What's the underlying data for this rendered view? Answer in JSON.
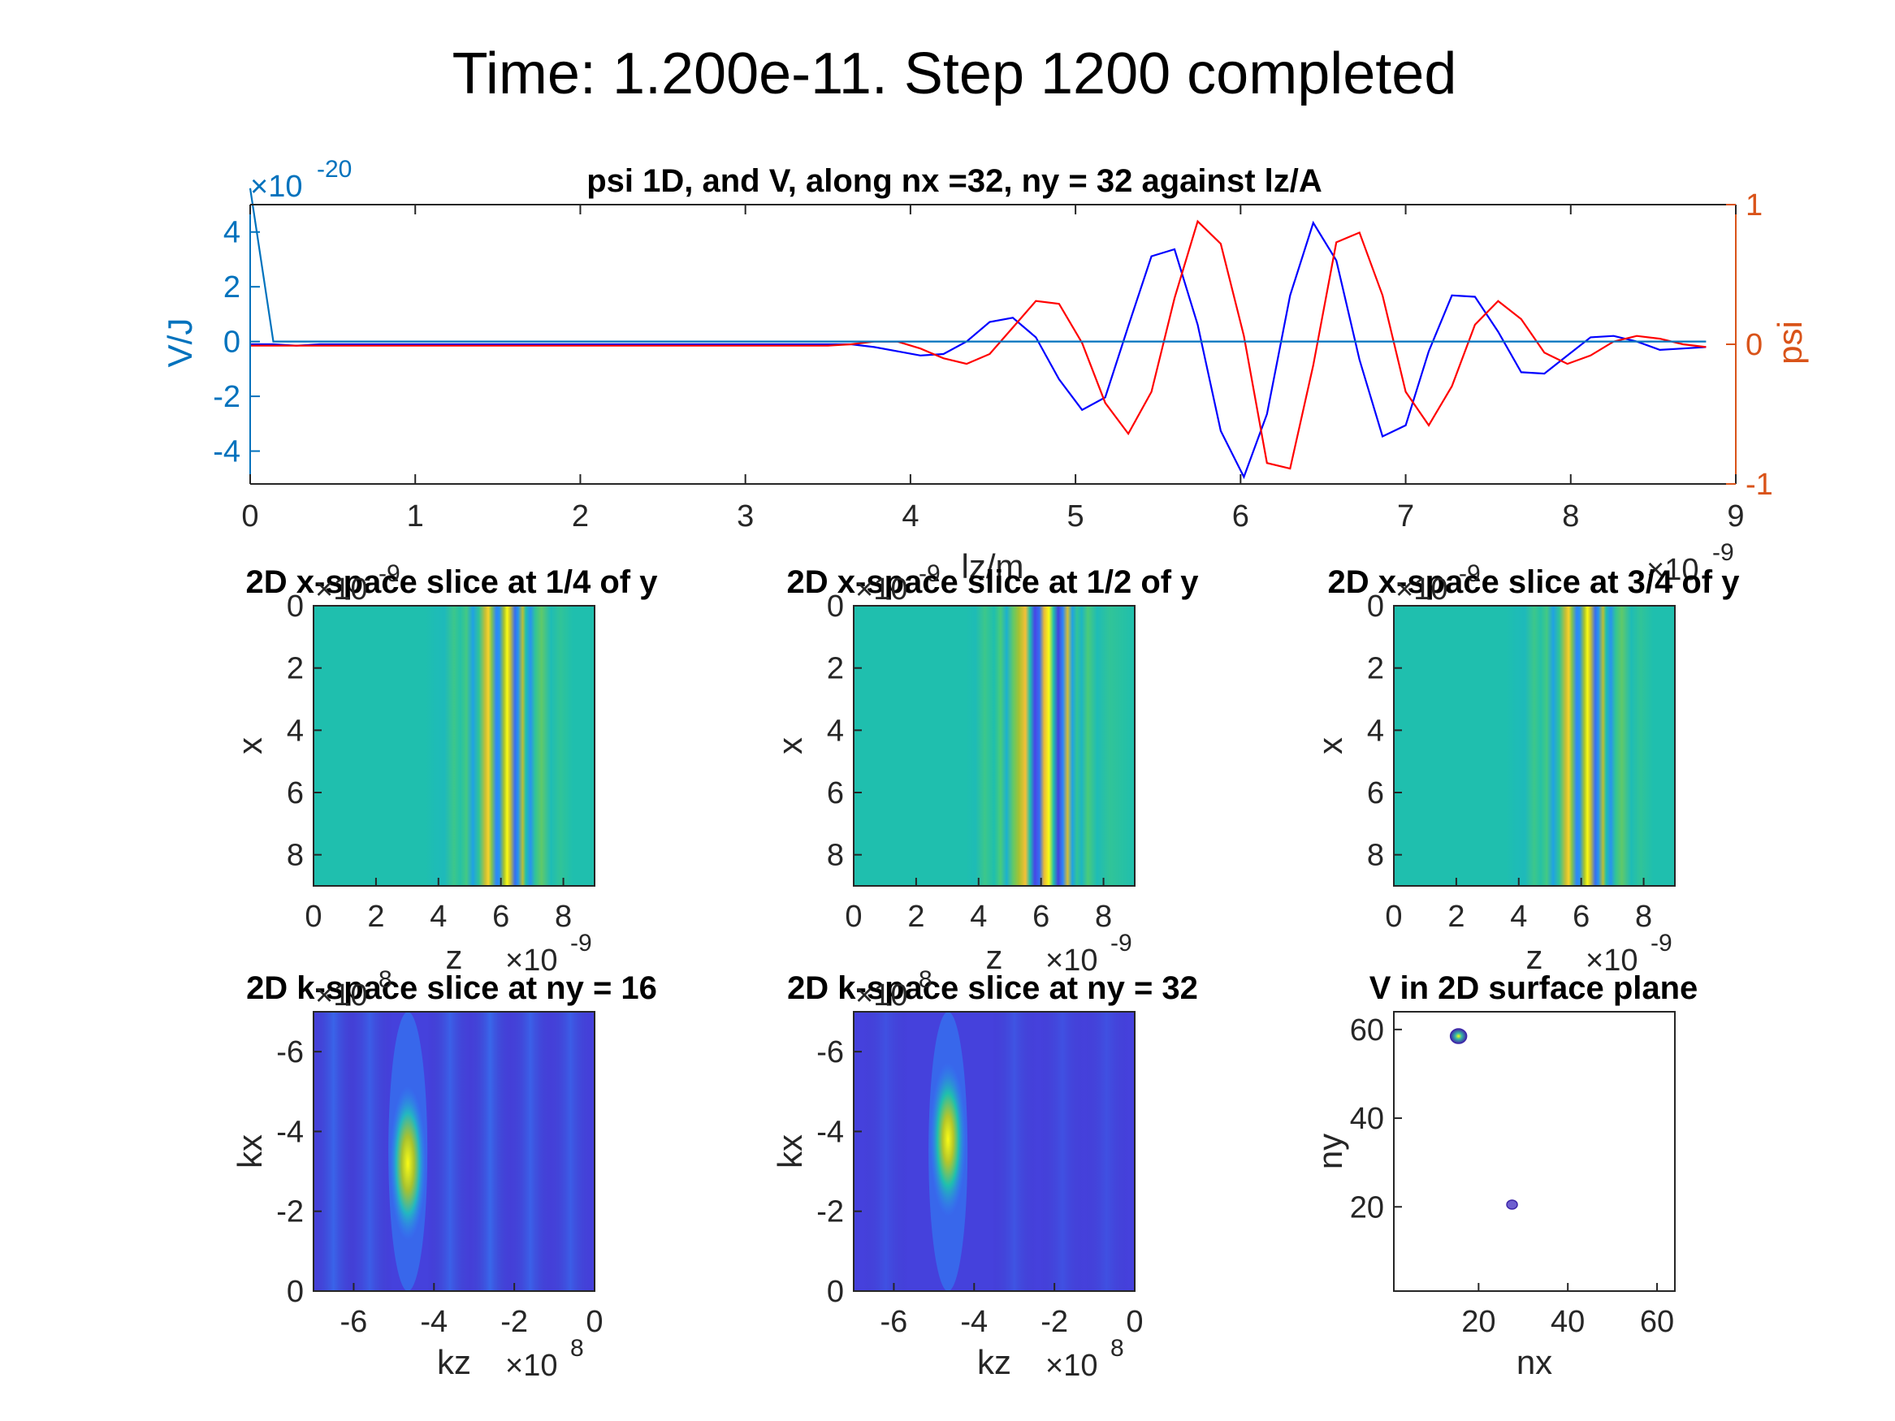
{
  "figure": {
    "suptitle": "Time: 1.200e-11. Step 1200 completed"
  },
  "colors": {
    "v_axis": "#0072BD",
    "psi_axis": "#D95319",
    "psi_real": "#0000FF",
    "psi_imag": "#FF0000",
    "v_line": "#0072BD",
    "parula_low": "#3E26A8",
    "parula_mid": "#1FBFAE",
    "parula_high": "#F9FB15"
  },
  "chart_data": [
    {
      "id": "psi1d",
      "type": "line",
      "title": "psi 1D, and V, along nx =32, ny = 32 against lz/A",
      "xlabel": "lz/m",
      "ylabel_left": "V/J",
      "ylabel_right": "psi",
      "x_exponent": "×10",
      "x_exponent_power": "-9",
      "y_left_exponent": "×10",
      "y_left_exponent_power": "-20",
      "xlim": [
        0,
        9
      ],
      "ylim_left": [
        -5.2,
        5
      ],
      "ylim_right": [
        -1,
        1
      ],
      "xticks": [
        "0",
        "1",
        "2",
        "3",
        "4",
        "5",
        "6",
        "7",
        "8",
        "9"
      ],
      "yticks_left": [
        "4",
        "2",
        "0",
        "-2",
        "-4"
      ],
      "yticks_left_values": [
        4,
        2,
        0,
        -2,
        -4
      ],
      "yticks_right": [
        "1",
        "0",
        "-1"
      ],
      "yticks_right_values": [
        1,
        0,
        -1
      ],
      "x": [
        0,
        0.14,
        0.28,
        0.42,
        0.56,
        0.7,
        0.84,
        0.98,
        1.12,
        1.26,
        1.4,
        1.54,
        1.68,
        1.82,
        1.96,
        2.1,
        2.24,
        2.38,
        2.52,
        2.66,
        2.8,
        2.94,
        3.08,
        3.22,
        3.36,
        3.5,
        3.64,
        3.78,
        3.92,
        4.06,
        4.2,
        4.34,
        4.48,
        4.62,
        4.76,
        4.9,
        5.04,
        5.18,
        5.32,
        5.46,
        5.6,
        5.74,
        5.88,
        6.02,
        6.16,
        6.3,
        6.44,
        6.58,
        6.72,
        6.86,
        7.0,
        7.14,
        7.28,
        7.42,
        7.56,
        7.7,
        7.84,
        7.98,
        8.12,
        8.26,
        8.4,
        8.54,
        8.68,
        8.82
      ],
      "series": [
        {
          "key": "real",
          "axis": "right",
          "values": [
            0,
            0,
            -0.01,
            0,
            0,
            0,
            0,
            0,
            0,
            0,
            0,
            0,
            0,
            0,
            0,
            0,
            0,
            0,
            0,
            0,
            0,
            0,
            0,
            0,
            0,
            0,
            0,
            -0.02,
            -0.05,
            -0.08,
            -0.07,
            0.02,
            0.16,
            0.19,
            0.05,
            -0.25,
            -0.47,
            -0.38,
            0.13,
            0.63,
            0.68,
            0.14,
            -0.62,
            -0.95,
            -0.5,
            0.35,
            0.87,
            0.6,
            -0.11,
            -0.66,
            -0.58,
            -0.05,
            0.35,
            0.34,
            0.09,
            -0.2,
            -0.21,
            -0.08,
            0.05,
            0.06,
            0.02,
            -0.04,
            -0.03,
            -0.02
          ]
        },
        {
          "key": "imag",
          "axis": "right",
          "values": [
            -0.01,
            -0.01,
            -0.01,
            -0.01,
            -0.01,
            -0.01,
            -0.01,
            -0.01,
            -0.01,
            -0.01,
            -0.01,
            -0.01,
            -0.01,
            -0.01,
            -0.01,
            -0.01,
            -0.01,
            -0.01,
            -0.01,
            -0.01,
            -0.01,
            -0.01,
            -0.01,
            -0.01,
            -0.01,
            -0.01,
            0,
            0.02,
            0.02,
            -0.03,
            -0.1,
            -0.14,
            -0.07,
            0.12,
            0.31,
            0.29,
            0.01,
            -0.42,
            -0.64,
            -0.34,
            0.33,
            0.88,
            0.72,
            0.06,
            -0.85,
            -0.89,
            -0.15,
            0.73,
            0.8,
            0.35,
            -0.34,
            -0.58,
            -0.3,
            0.14,
            0.31,
            0.18,
            -0.06,
            -0.14,
            -0.08,
            0.02,
            0.06,
            0.04,
            0,
            -0.02
          ]
        },
        {
          "key": "potential",
          "axis": "left",
          "values": [
            5.6,
            0,
            0,
            0,
            0,
            0,
            0,
            0,
            0,
            0,
            0,
            0,
            0,
            0,
            0,
            0,
            0,
            0,
            0,
            0,
            0,
            0,
            0,
            0,
            0,
            0,
            0,
            0,
            0,
            0,
            0,
            0,
            0,
            0,
            0,
            0,
            0,
            0,
            0,
            0,
            0,
            0,
            0,
            0,
            0,
            0,
            0,
            0,
            0,
            0,
            0,
            0,
            0,
            0,
            0,
            0,
            0,
            0,
            0,
            0,
            0,
            0,
            0,
            0
          ]
        }
      ]
    },
    {
      "id": "x14",
      "type": "heatmap",
      "title": "2D x-space slice at 1/4 of y",
      "xlabel": "z",
      "ylabel": "x",
      "x_exponent": "×10",
      "x_exponent_power": "-9",
      "y_exponent": "×10",
      "y_exponent_power": "-9",
      "xlim": [
        0,
        9
      ],
      "ylim": [
        0,
        9
      ],
      "xticks": [
        "0",
        "2",
        "4",
        "6",
        "8"
      ],
      "yticks": [
        "0",
        "2",
        "4",
        "6",
        "8"
      ],
      "z_profile_x": [
        0,
        3.6,
        3.9,
        4.2,
        4.5,
        4.7,
        4.9,
        5.1,
        5.3,
        5.5,
        5.6,
        5.7,
        5.85,
        5.95,
        6.1,
        6.2,
        6.3,
        6.45,
        6.55,
        6.7,
        6.8,
        6.95,
        7.1,
        7.3,
        7.6,
        7.9,
        8.3,
        9
      ],
      "z_profile_values": [
        0.5,
        0.5,
        0.48,
        0.47,
        0.58,
        0.52,
        0.6,
        0.35,
        0.55,
        0.8,
        0.92,
        0.7,
        0.25,
        0.3,
        0.75,
        1.0,
        0.8,
        0.2,
        0.3,
        0.78,
        0.5,
        0.3,
        0.55,
        0.65,
        0.48,
        0.55,
        0.5,
        0.5
      ]
    },
    {
      "id": "x12",
      "type": "heatmap",
      "title": "2D x-space slice at 1/2 of y",
      "xlabel": "z",
      "ylabel": "x",
      "x_exponent": "×10",
      "x_exponent_power": "-9",
      "y_exponent": "×10",
      "y_exponent_power": "-9",
      "xlim": [
        0,
        9
      ],
      "ylim": [
        0,
        9
      ],
      "xticks": [
        "0",
        "2",
        "4",
        "6",
        "8"
      ],
      "yticks": [
        "0",
        "2",
        "4",
        "6",
        "8"
      ],
      "z_profile_x": [
        0,
        3.6,
        3.9,
        4.2,
        4.5,
        4.7,
        4.9,
        5.1,
        5.3,
        5.5,
        5.65,
        5.8,
        5.95,
        6.1,
        6.25,
        6.4,
        6.55,
        6.7,
        6.85,
        7.0,
        7.15,
        7.3,
        7.5,
        7.8,
        8.2,
        9
      ],
      "z_profile_values": [
        0.5,
        0.5,
        0.48,
        0.58,
        0.5,
        0.62,
        0.42,
        0.65,
        0.75,
        0.88,
        0.5,
        0.12,
        0.2,
        0.85,
        1.0,
        0.5,
        0.1,
        0.25,
        0.82,
        0.35,
        0.55,
        0.45,
        0.62,
        0.48,
        0.55,
        0.5
      ]
    },
    {
      "id": "x34",
      "type": "heatmap",
      "title": "2D x-space slice at 3/4 of y",
      "xlabel": "z",
      "ylabel": "x",
      "x_exponent": "×10",
      "x_exponent_power": "-9",
      "y_exponent": "×10",
      "y_exponent_power": "-9",
      "xlim": [
        0,
        9
      ],
      "ylim": [
        0,
        9
      ],
      "xticks": [
        "0",
        "2",
        "4",
        "6",
        "8"
      ],
      "yticks": [
        "0",
        "2",
        "4",
        "6",
        "8"
      ],
      "z_profile_x": [
        0,
        3.6,
        3.9,
        4.2,
        4.5,
        4.7,
        4.9,
        5.1,
        5.3,
        5.5,
        5.6,
        5.7,
        5.85,
        5.95,
        6.1,
        6.2,
        6.3,
        6.45,
        6.55,
        6.7,
        6.8,
        6.95,
        7.1,
        7.3,
        7.6,
        7.9,
        8.3,
        9
      ],
      "z_profile_values": [
        0.5,
        0.5,
        0.48,
        0.47,
        0.58,
        0.52,
        0.6,
        0.35,
        0.55,
        0.8,
        0.92,
        0.7,
        0.25,
        0.3,
        0.75,
        1.0,
        0.8,
        0.2,
        0.3,
        0.78,
        0.5,
        0.3,
        0.55,
        0.65,
        0.48,
        0.55,
        0.5,
        0.5
      ]
    },
    {
      "id": "k16",
      "type": "heatmap",
      "title": "2D k-space slice at ny = 16",
      "xlabel": "kz",
      "ylabel": "kx",
      "x_exponent": "×10",
      "x_exponent_power": "8",
      "y_exponent": "×10",
      "y_exponent_power": "8",
      "xlim": [
        -7,
        0
      ],
      "ylim": [
        -7,
        0
      ],
      "xticks": [
        "-6",
        "-4",
        "-2",
        "0"
      ],
      "yticks": [
        "-6",
        "-4",
        "-2",
        "0"
      ],
      "peak": {
        "kz": -4.65,
        "kx": -3.2,
        "level": 1.0
      }
    },
    {
      "id": "k32",
      "type": "heatmap",
      "title": "2D k-space slice at ny = 32",
      "xlabel": "kz",
      "ylabel": "kx",
      "x_exponent": "×10",
      "x_exponent_power": "8",
      "y_exponent": "×10",
      "y_exponent_power": "8",
      "xlim": [
        -7,
        0
      ],
      "ylim": [
        -7,
        0
      ],
      "xticks": [
        "-6",
        "-4",
        "-2",
        "0"
      ],
      "yticks": [
        "-6",
        "-4",
        "-2",
        "0"
      ],
      "peak": {
        "kz": -4.65,
        "kx": -3.8,
        "level": 1.0
      }
    },
    {
      "id": "surface",
      "type": "scatter",
      "title": "V in 2D surface plane",
      "xlabel": "nx",
      "ylabel": "ny",
      "xlim": [
        1,
        64
      ],
      "ylim": [
        1,
        64
      ],
      "xticks": [
        "20",
        "40",
        "60"
      ],
      "xticks_values": [
        20,
        40,
        60
      ],
      "yticks": [
        "60",
        "40",
        "20"
      ],
      "yticks_values": [
        60,
        40,
        20
      ],
      "points": [
        {
          "nx": 15.5,
          "ny": 58.5,
          "kind": "large"
        },
        {
          "nx": 27.5,
          "ny": 20.5,
          "kind": "small"
        }
      ]
    }
  ]
}
